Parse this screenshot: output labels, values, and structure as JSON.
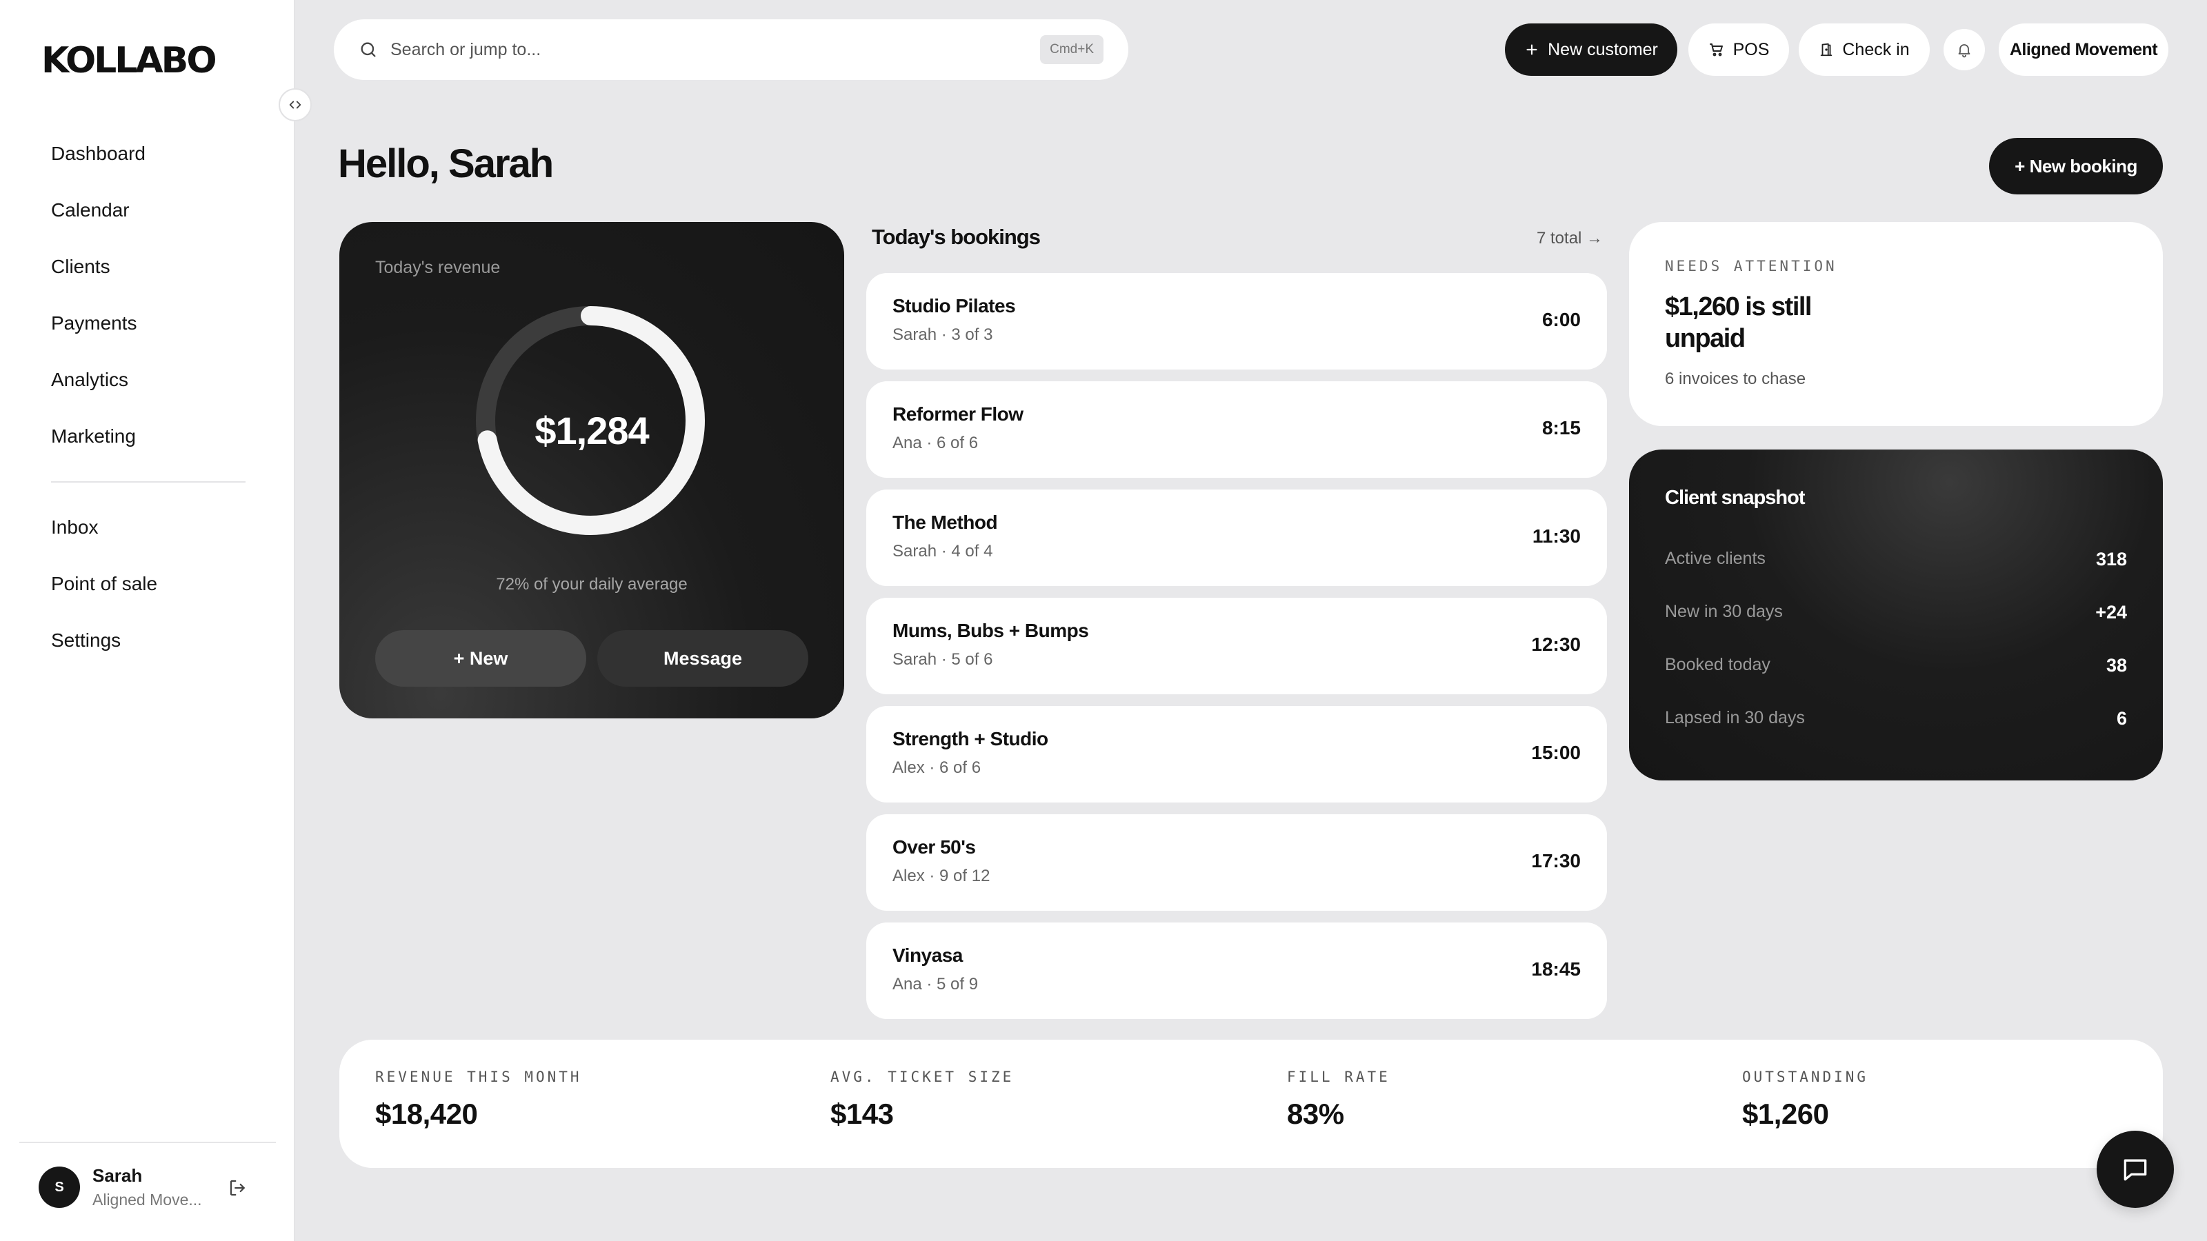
{
  "app": {
    "logo": "KOLLABO"
  },
  "sidebar": {
    "main_items": [
      {
        "label": "Dashboard"
      },
      {
        "label": "Calendar"
      },
      {
        "label": "Clients"
      },
      {
        "label": "Payments"
      },
      {
        "label": "Analytics"
      },
      {
        "label": "Marketing"
      }
    ],
    "secondary_items": [
      {
        "label": "Inbox"
      },
      {
        "label": "Point of sale"
      },
      {
        "label": "Settings"
      }
    ],
    "user": {
      "initial": "S",
      "name": "Sarah",
      "org": "Aligned Move..."
    }
  },
  "topbar": {
    "search_placeholder": "Search or jump to...",
    "search_shortcut": "Cmd+K",
    "new_customer": "New customer",
    "pos": "POS",
    "check_in": "Check in",
    "org": "Aligned Movement"
  },
  "main": {
    "greeting": "Hello, Sarah",
    "new_booking": "+ New booking"
  },
  "revenue": {
    "label": "Today's revenue",
    "value": "$1,284",
    "progress_fraction": 0.72,
    "subtext": "72% of your daily average",
    "new_btn": "+ New",
    "message_btn": "Message"
  },
  "bookings": {
    "title": "Today's bookings",
    "total": "7 total →",
    "items": [
      {
        "name": "Studio Pilates",
        "meta": "Sarah · 3 of 3",
        "time": "6:00"
      },
      {
        "name": "Reformer Flow",
        "meta": "Ana · 6 of 6",
        "time": "8:15"
      },
      {
        "name": "The Method",
        "meta": "Sarah · 4 of 4",
        "time": "11:30"
      },
      {
        "name": "Mums, Bubs + Bumps",
        "meta": "Sarah · 5 of 6",
        "time": "12:30"
      },
      {
        "name": "Strength + Studio",
        "meta": "Alex · 6 of 6",
        "time": "15:00"
      },
      {
        "name": "Over 50's",
        "meta": "Alex · 9 of 12",
        "time": "17:30"
      },
      {
        "name": "Vinyasa",
        "meta": "Ana · 5 of 9",
        "time": "18:45"
      }
    ]
  },
  "attention": {
    "label": "NEEDS ATTENTION",
    "title": "$1,260 is still unpaid",
    "subtext": "6 invoices to chase"
  },
  "snapshot": {
    "title": "Client snapshot",
    "rows": [
      {
        "label": "Active clients",
        "value": "318"
      },
      {
        "label": "New in 30 days",
        "value": "+24"
      },
      {
        "label": "Booked today",
        "value": "38"
      },
      {
        "label": "Lapsed in 30 days",
        "value": "6"
      }
    ]
  },
  "stats": [
    {
      "label": "REVENUE THIS MONTH",
      "value": "$18,420"
    },
    {
      "label": "AVG. TICKET SIZE",
      "value": "$143"
    },
    {
      "label": "FILL RATE",
      "value": "83%"
    },
    {
      "label": "OUTSTANDING",
      "value": "$1,260"
    }
  ],
  "colors": {
    "background": "#e8e8ea",
    "dark": "#161616",
    "card": "#ffffff",
    "ring_track": "#3c3c3c",
    "ring_fill": "#f4f4f4"
  }
}
